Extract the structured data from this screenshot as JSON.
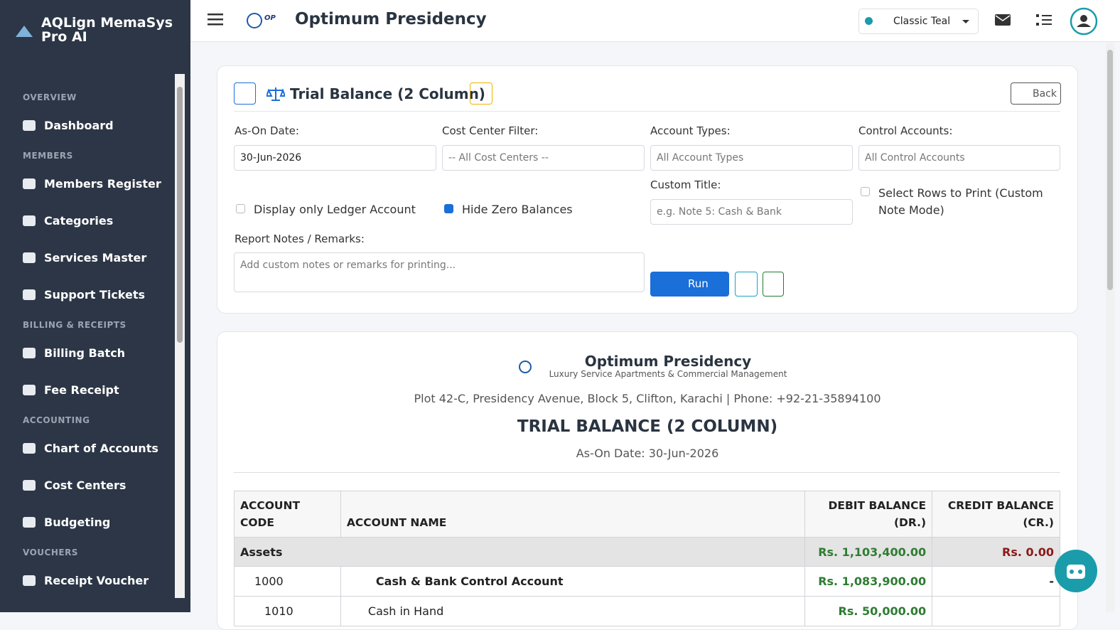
{
  "sidebar": {
    "brand": "AQLign MemaSys Pro AI",
    "sections": [
      {
        "heading": "OVERVIEW",
        "items": [
          "Dashboard"
        ]
      },
      {
        "heading": "MEMBERS",
        "items": [
          "Members Register",
          "Categories",
          "Services Master",
          "Support Tickets"
        ]
      },
      {
        "heading": "BILLING & RECEIPTS",
        "items": [
          "Billing Batch",
          "Fee Receipt"
        ]
      },
      {
        "heading": "ACCOUNTING",
        "items": [
          "Chart of Accounts",
          "Cost Centers",
          "Budgeting"
        ]
      },
      {
        "heading": "VOUCHERS",
        "items": [
          "Receipt Voucher"
        ]
      }
    ]
  },
  "topbar": {
    "logo_mark": "OP",
    "title": "Optimum Presidency",
    "theme": "Classic Teal"
  },
  "filters": {
    "title": "Trial Balance (2 Column)",
    "back": "Back",
    "as_on_label": "As-On Date:",
    "as_on_value": "30-Jun-2026",
    "cost_center_label": "Cost Center Filter:",
    "cost_center_value": "-- All Cost Centers --",
    "account_types_label": "Account Types:",
    "account_types_value": "All Account Types",
    "control_label": "Control Accounts:",
    "control_value": "All Control Accounts",
    "ledger_only": "Display only Ledger Account",
    "hide_zero": "Hide Zero Balances",
    "custom_title_label": "Custom Title:",
    "custom_title_placeholder": "e.g. Note 5: Cash & Bank",
    "select_rows": "Select Rows to Print (Custom Note Mode)",
    "notes_label": "Report Notes / Remarks:",
    "notes_placeholder": "Add custom notes or remarks for printing...",
    "run": "Run"
  },
  "report": {
    "company": "Optimum Presidency",
    "tagline": "Luxury Service Apartments & Commercial Management",
    "address": "Plot 42-C, Presidency Avenue, Block 5, Clifton, Karachi | Phone: +92-21-35894100",
    "title": "TRIAL BALANCE (2 COLUMN)",
    "as_on": "As-On Date: 30-Jun-2026",
    "headers": [
      "ACCOUNT CODE",
      "ACCOUNT NAME",
      "DEBIT BALANCE (DR.)",
      "CREDIT BALANCE (CR.)"
    ],
    "group": {
      "name": "Assets",
      "debit": "Rs. 1,103,400.00",
      "credit": "Rs. 0.00"
    },
    "rows": [
      [
        "1000",
        "Cash & Bank Control Account",
        "Rs. 1,083,900.00",
        "-"
      ],
      [
        "1010",
        "Cash in Hand",
        "Rs. 50,000.00",
        ""
      ]
    ]
  }
}
